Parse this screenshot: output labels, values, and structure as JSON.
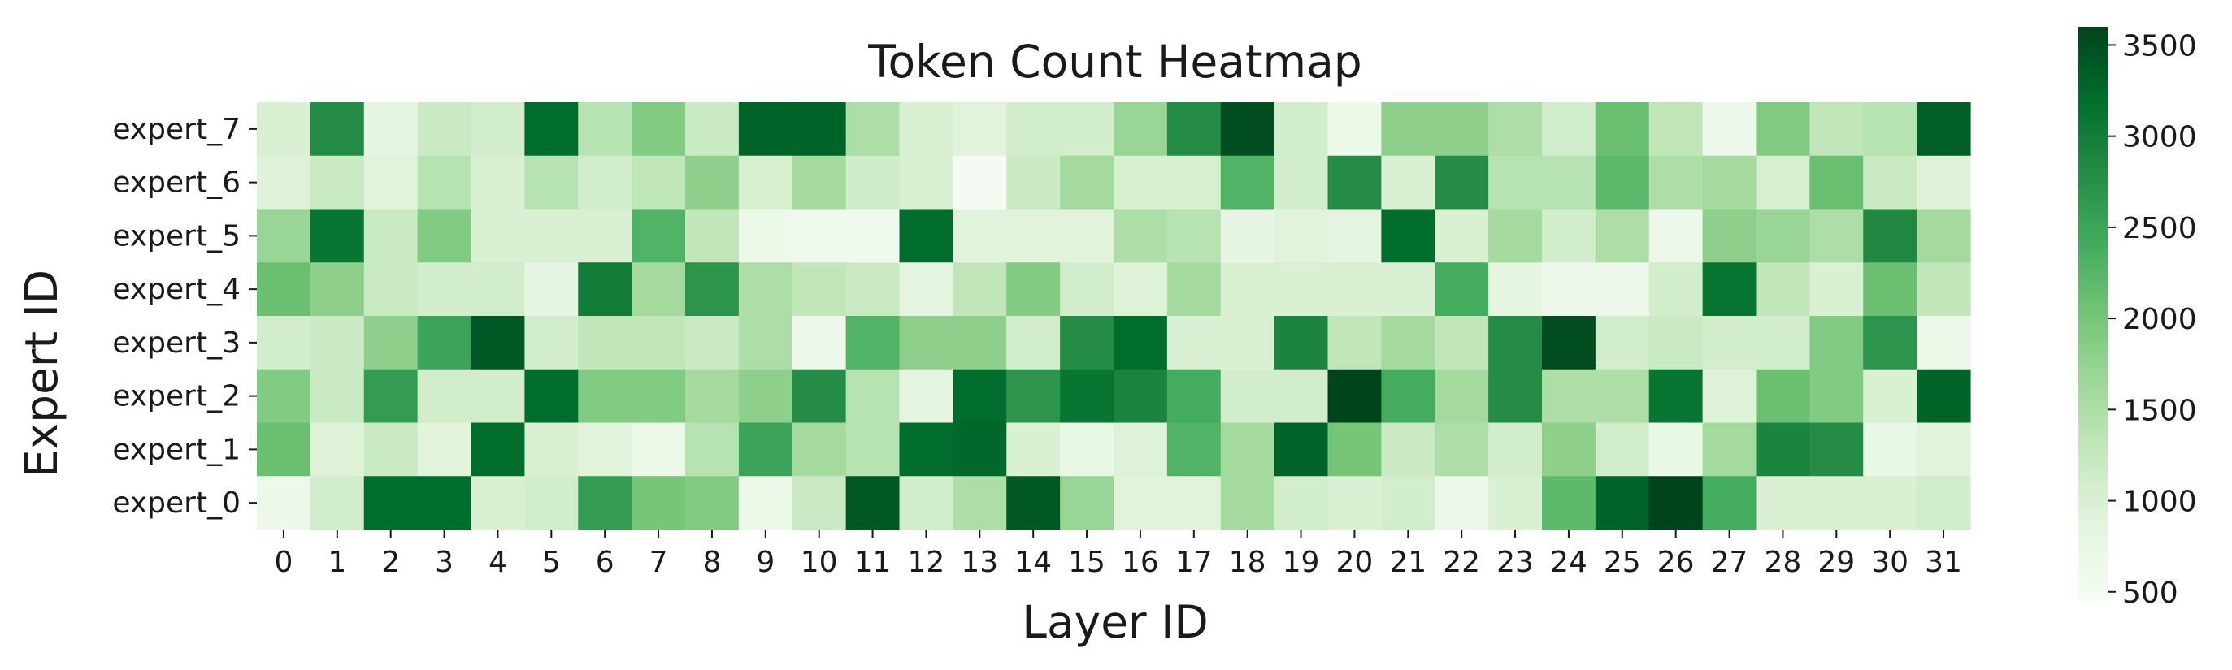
{
  "chart_data": {
    "type": "heatmap",
    "title": "Token Count Heatmap",
    "xlabel": "Layer ID",
    "ylabel": "Expert ID",
    "x_categories": [
      "0",
      "1",
      "2",
      "3",
      "4",
      "5",
      "6",
      "7",
      "8",
      "9",
      "10",
      "11",
      "12",
      "13",
      "14",
      "15",
      "16",
      "17",
      "18",
      "19",
      "20",
      "21",
      "22",
      "23",
      "24",
      "25",
      "26",
      "27",
      "28",
      "29",
      "30",
      "31"
    ],
    "y_categories": [
      "expert_7",
      "expert_6",
      "expert_5",
      "expert_4",
      "expert_3",
      "expert_2",
      "expert_1",
      "expert_0"
    ],
    "colormap": "Greens",
    "colorbar": {
      "min": 450,
      "max": 3600,
      "ticks": [
        500,
        1000,
        1500,
        2000,
        2500,
        3000,
        3500
      ]
    },
    "grid": false,
    "values": [
      [
        1000,
        2800,
        800,
        1200,
        1100,
        3200,
        1400,
        1900,
        1200,
        3300,
        3300,
        1500,
        1000,
        900,
        1100,
        1100,
        1700,
        2800,
        3500,
        1100,
        700,
        1800,
        1800,
        1500,
        1100,
        2100,
        1300,
        650,
        1900,
        1300,
        1400,
        3350
      ],
      [
        950,
        1200,
        900,
        1400,
        1000,
        1400,
        1100,
        1300,
        1800,
        1050,
        1600,
        1150,
        1000,
        500,
        1200,
        1600,
        1050,
        1050,
        2300,
        1100,
        2800,
        1000,
        2800,
        1400,
        1400,
        2200,
        1500,
        1600,
        1050,
        2100,
        1200,
        950
      ],
      [
        1700,
        3100,
        1200,
        1900,
        1000,
        1000,
        1000,
        2300,
        1300,
        700,
        600,
        600,
        3200,
        900,
        900,
        900,
        1500,
        1400,
        800,
        900,
        850,
        3200,
        1000,
        1600,
        1100,
        1500,
        650,
        1800,
        1700,
        1500,
        2850,
        1600
      ],
      [
        2100,
        1800,
        1200,
        1100,
        1100,
        800,
        3000,
        1600,
        2700,
        1500,
        1300,
        1200,
        850,
        1300,
        1900,
        1100,
        950,
        1600,
        1000,
        1000,
        1000,
        1000,
        2400,
        850,
        650,
        650,
        1100,
        3100,
        1300,
        1000,
        2100,
        1300
      ],
      [
        1100,
        1200,
        1800,
        2500,
        3400,
        1100,
        1300,
        1300,
        1200,
        1500,
        650,
        2300,
        1800,
        1800,
        1100,
        2800,
        3200,
        1000,
        1000,
        2900,
        1300,
        1600,
        1300,
        2800,
        3500,
        1100,
        1200,
        1100,
        1100,
        1900,
        2700,
        700
      ],
      [
        1900,
        1200,
        2600,
        1100,
        1100,
        3200,
        1900,
        1900,
        1600,
        1800,
        2800,
        1400,
        850,
        3200,
        2700,
        3100,
        2900,
        2400,
        1100,
        1100,
        3600,
        2400,
        1600,
        2800,
        1500,
        1500,
        3100,
        950,
        2100,
        1900,
        1000,
        3300
      ],
      [
        2100,
        950,
        1200,
        900,
        3200,
        1000,
        900,
        700,
        1400,
        2500,
        1600,
        1400,
        3200,
        3250,
        1000,
        750,
        950,
        2300,
        1600,
        3300,
        2000,
        1200,
        1500,
        1100,
        1800,
        1100,
        750,
        1600,
        2900,
        2800,
        750,
        900
      ],
      [
        650,
        1100,
        3200,
        3200,
        1000,
        1100,
        2600,
        2000,
        1900,
        700,
        1200,
        3400,
        1100,
        1500,
        3400,
        1700,
        900,
        900,
        1600,
        1100,
        1000,
        1100,
        650,
        1000,
        2200,
        3300,
        3600,
        2400,
        1000,
        1000,
        1000,
        1100
      ]
    ]
  }
}
